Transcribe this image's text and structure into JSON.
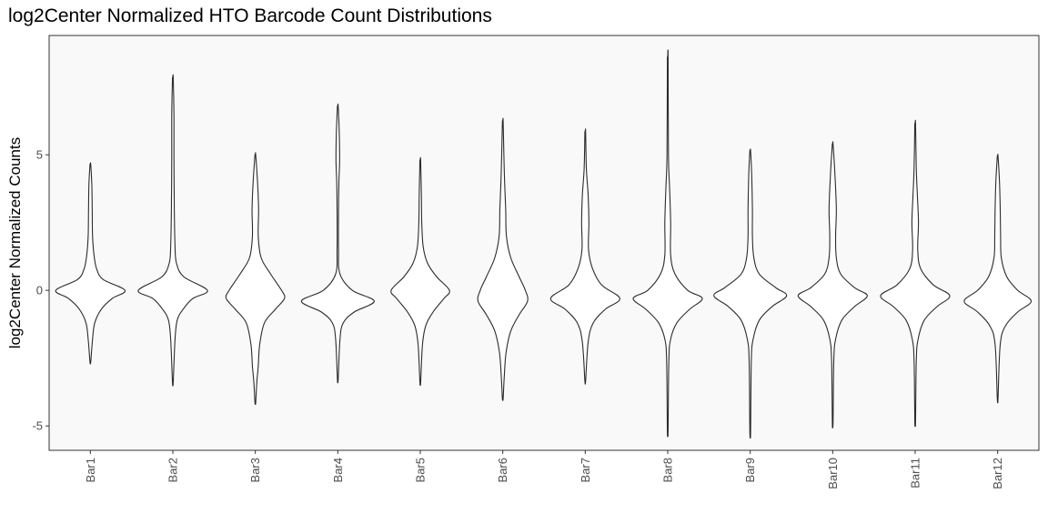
{
  "chart_data": {
    "type": "violin",
    "title": "log2Center Normalized HTO Barcode Count Distributions",
    "xlabel": "",
    "ylabel": "log2Center Normalized Counts",
    "ylim": [
      -5.9,
      9.4
    ],
    "yticks": [
      -5,
      0,
      5
    ],
    "ytick_labels": [
      "-5",
      "0",
      "5"
    ],
    "grid": false,
    "legend": "none",
    "background": "#f9f9f9",
    "categories": [
      "Bar1",
      "Bar2",
      "Bar3",
      "Bar4",
      "Bar5",
      "Bar6",
      "Bar7",
      "Bar8",
      "Bar9",
      "Bar10",
      "Bar11",
      "Bar12"
    ],
    "series": [
      {
        "category": "Bar1",
        "min": -2.65,
        "max": 4.65,
        "mode": 0.0,
        "profile": [
          [
            4.65,
            0.01
          ],
          [
            3.9,
            0.04
          ],
          [
            3.0,
            0.05
          ],
          [
            2.0,
            0.06
          ],
          [
            1.3,
            0.1
          ],
          [
            0.8,
            0.17
          ],
          [
            0.4,
            0.35
          ],
          [
            0.0,
            0.95
          ],
          [
            -0.3,
            0.6
          ],
          [
            -0.7,
            0.3
          ],
          [
            -1.2,
            0.12
          ],
          [
            -1.8,
            0.06
          ],
          [
            -2.65,
            0.01
          ]
        ]
      },
      {
        "category": "Bar2",
        "min": -3.4,
        "max": 7.85,
        "mode": 0.0,
        "profile": [
          [
            7.85,
            0.01
          ],
          [
            6.5,
            0.03
          ],
          [
            5.0,
            0.03
          ],
          [
            3.0,
            0.04
          ],
          [
            1.6,
            0.06
          ],
          [
            1.0,
            0.1
          ],
          [
            0.5,
            0.3
          ],
          [
            0.0,
            0.95
          ],
          [
            -0.3,
            0.55
          ],
          [
            -0.7,
            0.28
          ],
          [
            -1.1,
            0.12
          ],
          [
            -1.8,
            0.06
          ],
          [
            -3.4,
            0.01
          ]
        ]
      },
      {
        "category": "Bar3",
        "min": -4.15,
        "max": 5.0,
        "mode": -0.3,
        "profile": [
          [
            5.0,
            0.01
          ],
          [
            4.0,
            0.06
          ],
          [
            3.0,
            0.09
          ],
          [
            2.0,
            0.08
          ],
          [
            1.2,
            0.16
          ],
          [
            0.6,
            0.42
          ],
          [
            0.0,
            0.72
          ],
          [
            -0.3,
            0.8
          ],
          [
            -0.7,
            0.55
          ],
          [
            -1.2,
            0.25
          ],
          [
            -2.0,
            0.12
          ],
          [
            -2.8,
            0.08
          ],
          [
            -3.4,
            0.04
          ],
          [
            -4.15,
            0.01
          ]
        ]
      },
      {
        "category": "Bar4",
        "min": -3.3,
        "max": 6.8,
        "mode": -0.4,
        "profile": [
          [
            6.8,
            0.01
          ],
          [
            5.8,
            0.04
          ],
          [
            4.8,
            0.05
          ],
          [
            4.0,
            0.03
          ],
          [
            3.0,
            0.02
          ],
          [
            1.5,
            0.02
          ],
          [
            0.6,
            0.06
          ],
          [
            0.0,
            0.4
          ],
          [
            -0.4,
            1.0
          ],
          [
            -0.8,
            0.45
          ],
          [
            -1.2,
            0.15
          ],
          [
            -1.8,
            0.06
          ],
          [
            -3.3,
            0.01
          ]
        ]
      },
      {
        "category": "Bar5",
        "min": -3.4,
        "max": 4.8,
        "mode": 0.0,
        "profile": [
          [
            4.8,
            0.01
          ],
          [
            3.5,
            0.03
          ],
          [
            2.5,
            0.04
          ],
          [
            1.6,
            0.08
          ],
          [
            1.0,
            0.2
          ],
          [
            0.5,
            0.45
          ],
          [
            0.0,
            0.8
          ],
          [
            -0.3,
            0.65
          ],
          [
            -0.8,
            0.35
          ],
          [
            -1.3,
            0.15
          ],
          [
            -2.0,
            0.06
          ],
          [
            -3.4,
            0.01
          ]
        ]
      },
      {
        "category": "Bar6",
        "min": -4.0,
        "max": 6.25,
        "mode": -0.4,
        "profile": [
          [
            6.25,
            0.01
          ],
          [
            5.0,
            0.03
          ],
          [
            4.0,
            0.05
          ],
          [
            3.0,
            0.08
          ],
          [
            2.0,
            0.1
          ],
          [
            1.2,
            0.22
          ],
          [
            0.5,
            0.45
          ],
          [
            0.0,
            0.62
          ],
          [
            -0.4,
            0.68
          ],
          [
            -0.9,
            0.45
          ],
          [
            -1.5,
            0.22
          ],
          [
            -2.3,
            0.09
          ],
          [
            -3.2,
            0.04
          ],
          [
            -4.0,
            0.01
          ]
        ]
      },
      {
        "category": "Bar7",
        "min": -3.35,
        "max": 5.85,
        "mode": -0.3,
        "profile": [
          [
            5.85,
            0.01
          ],
          [
            4.5,
            0.03
          ],
          [
            3.5,
            0.08
          ],
          [
            2.5,
            0.1
          ],
          [
            1.5,
            0.09
          ],
          [
            0.8,
            0.2
          ],
          [
            0.2,
            0.45
          ],
          [
            -0.3,
            0.95
          ],
          [
            -0.7,
            0.55
          ],
          [
            -1.2,
            0.22
          ],
          [
            -1.9,
            0.08
          ],
          [
            -3.35,
            0.01
          ]
        ]
      },
      {
        "category": "Bar8",
        "min": -5.2,
        "max": 8.6,
        "mode": -0.3,
        "profile": [
          [
            8.6,
            0.01
          ],
          [
            5.0,
            0.02
          ],
          [
            3.8,
            0.05
          ],
          [
            2.5,
            0.08
          ],
          [
            1.3,
            0.08
          ],
          [
            0.6,
            0.2
          ],
          [
            0.0,
            0.55
          ],
          [
            -0.3,
            0.95
          ],
          [
            -0.7,
            0.6
          ],
          [
            -1.2,
            0.25
          ],
          [
            -1.8,
            0.08
          ],
          [
            -2.6,
            0.03
          ],
          [
            -5.2,
            0.01
          ]
        ]
      },
      {
        "category": "Bar9",
        "min": -5.25,
        "max": 5.15,
        "mode": -0.1,
        "profile": [
          [
            5.15,
            0.01
          ],
          [
            4.3,
            0.04
          ],
          [
            3.0,
            0.06
          ],
          [
            2.0,
            0.06
          ],
          [
            1.2,
            0.1
          ],
          [
            0.6,
            0.25
          ],
          [
            0.1,
            0.7
          ],
          [
            -0.2,
            1.0
          ],
          [
            -0.6,
            0.6
          ],
          [
            -1.1,
            0.25
          ],
          [
            -1.8,
            0.08
          ],
          [
            -2.6,
            0.03
          ],
          [
            -5.25,
            0.01
          ]
        ]
      },
      {
        "category": "Bar10",
        "min": -4.9,
        "max": 5.4,
        "mode": -0.2,
        "profile": [
          [
            5.4,
            0.01
          ],
          [
            4.3,
            0.06
          ],
          [
            3.0,
            0.1
          ],
          [
            2.0,
            0.08
          ],
          [
            1.2,
            0.1
          ],
          [
            0.6,
            0.22
          ],
          [
            0.1,
            0.6
          ],
          [
            -0.2,
            0.95
          ],
          [
            -0.6,
            0.6
          ],
          [
            -1.1,
            0.25
          ],
          [
            -1.8,
            0.08
          ],
          [
            -2.6,
            0.03
          ],
          [
            -4.9,
            0.01
          ]
        ]
      },
      {
        "category": "Bar11",
        "min": -4.85,
        "max": 6.15,
        "mode": -0.2,
        "profile": [
          [
            6.15,
            0.01
          ],
          [
            4.5,
            0.03
          ],
          [
            3.5,
            0.06
          ],
          [
            2.5,
            0.09
          ],
          [
            1.5,
            0.07
          ],
          [
            0.8,
            0.15
          ],
          [
            0.2,
            0.5
          ],
          [
            -0.2,
            0.95
          ],
          [
            -0.6,
            0.6
          ],
          [
            -1.1,
            0.25
          ],
          [
            -1.8,
            0.08
          ],
          [
            -2.6,
            0.03
          ],
          [
            -4.85,
            0.01
          ]
        ]
      },
      {
        "category": "Bar12",
        "min": -4.0,
        "max": 4.95,
        "mode": -0.4,
        "profile": [
          [
            4.95,
            0.01
          ],
          [
            4.0,
            0.05
          ],
          [
            3.0,
            0.07
          ],
          [
            2.0,
            0.08
          ],
          [
            1.2,
            0.1
          ],
          [
            0.5,
            0.25
          ],
          [
            0.0,
            0.55
          ],
          [
            -0.4,
            0.92
          ],
          [
            -0.8,
            0.55
          ],
          [
            -1.3,
            0.22
          ],
          [
            -2.0,
            0.07
          ],
          [
            -4.0,
            0.01
          ]
        ]
      }
    ]
  }
}
